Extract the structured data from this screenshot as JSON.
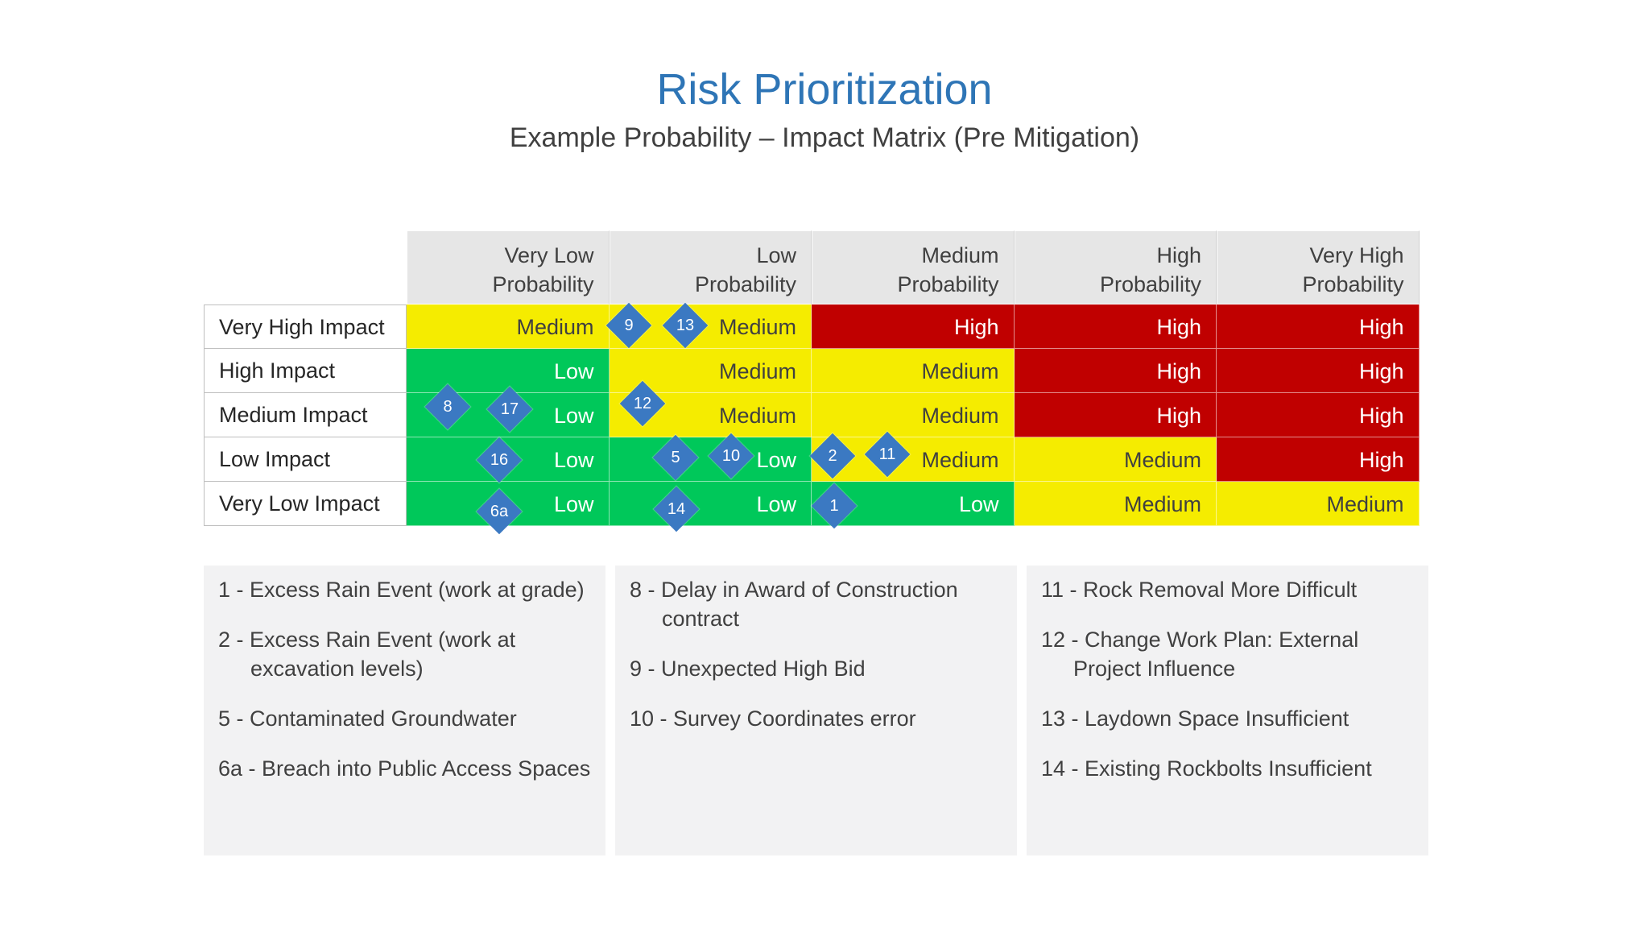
{
  "title": "Risk Prioritization",
  "subtitle": "Example Probability – Impact Matrix (Pre Mitigation)",
  "columns": [
    {
      "line1": "Very Low",
      "line2": "Probability"
    },
    {
      "line1": "Low",
      "line2": "Probability"
    },
    {
      "line1": "Medium",
      "line2": "Probability"
    },
    {
      "line1": "High",
      "line2": "Probability"
    },
    {
      "line1": "Very High",
      "line2": "Probability"
    }
  ],
  "rows": [
    {
      "label": "Very High Impact",
      "cells": [
        "Medium",
        "Medium",
        "High",
        "High",
        "High"
      ]
    },
    {
      "label": "High Impact",
      "cells": [
        "Low",
        "Medium",
        "Medium",
        "High",
        "High"
      ]
    },
    {
      "label": "Medium Impact",
      "cells": [
        "Low",
        "Medium",
        "Medium",
        "High",
        "High"
      ]
    },
    {
      "label": "Low Impact",
      "cells": [
        "Low",
        "Low",
        "Medium",
        "Medium",
        "High"
      ]
    },
    {
      "label": "Very Low Impact",
      "cells": [
        "Low",
        "Low",
        "Low",
        "Medium",
        "Medium"
      ]
    }
  ],
  "level_colors": {
    "Low": "#00c85a",
    "Medium": "#f5ec00",
    "High": "#c00000"
  },
  "marker_color": "#3b79c2",
  "markers": [
    {
      "id": "9",
      "row": 0,
      "col": 0
    },
    {
      "id": "13",
      "row": 0,
      "col": 1
    },
    {
      "id": "8",
      "row": 2,
      "col": 0
    },
    {
      "id": "17",
      "row": 2,
      "col": 0
    },
    {
      "id": "12",
      "row": 2,
      "col": 1
    },
    {
      "id": "16",
      "row": 3,
      "col": 0
    },
    {
      "id": "5",
      "row": 3,
      "col": 1
    },
    {
      "id": "10",
      "row": 3,
      "col": 1
    },
    {
      "id": "2",
      "row": 3,
      "col": 2
    },
    {
      "id": "11",
      "row": 3,
      "col": 2
    },
    {
      "id": "6a",
      "row": 4,
      "col": 0
    },
    {
      "id": "14",
      "row": 4,
      "col": 1
    },
    {
      "id": "1",
      "row": 4,
      "col": 2
    }
  ],
  "legend": [
    [
      "1 - Excess Rain Event (work at grade)",
      "2 - Excess Rain Event (work at excavation levels)",
      "5 - Contaminated Groundwater",
      "6a - Breach into Public Access Spaces"
    ],
    [
      "8 - Delay in Award of Construction contract",
      "9 - Unexpected High Bid",
      "10 - Survey Coordinates error"
    ],
    [
      "11 - Rock Removal More Difficult",
      "12 - Change Work Plan: External Project Influence",
      "13 - Laydown Space Insufficient",
      "14 - Existing Rockbolts Insufficient"
    ]
  ]
}
